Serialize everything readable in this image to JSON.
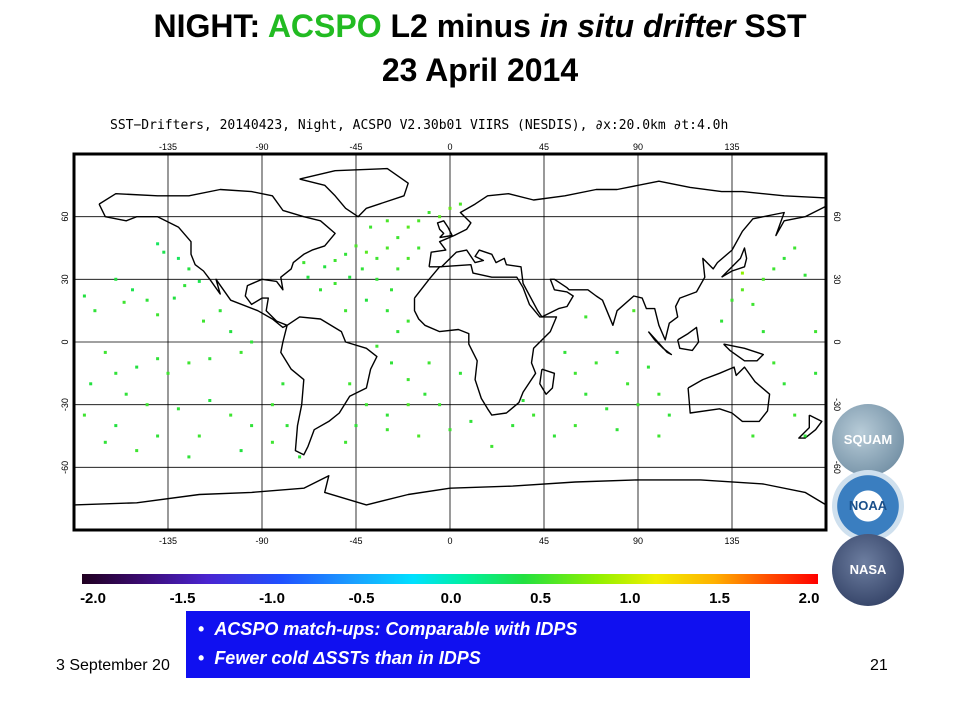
{
  "title_line1_prefix": "NIGHT: ",
  "title_line1_green": "ACSPO",
  "title_line1_mid": " L2 minus ",
  "title_line1_italic": "in situ drifter",
  "title_line1_end": " SST",
  "title_line2": "23 April 2014",
  "map_subtitle": "SST−Drifters, 20140423, Night, ACSPO V2.30b01 VIIRS (NESDIS), ∂x:20.0km ∂t:4.0h",
  "map": {
    "lon_ticks": [
      "-135",
      "-90",
      "-45",
      "0",
      "45",
      "90",
      "135"
    ],
    "lat_ticks_left": [
      "60",
      "30",
      "0",
      "-30",
      "-60"
    ],
    "lat_ticks_right": [
      "60",
      "30",
      "0",
      "-30",
      "-60"
    ],
    "colors": {
      "land_outline": "#000000",
      "grid": "#000000",
      "frame": "#000000",
      "ocean": "#ffffff"
    },
    "drifters": [
      [
        -140,
        47,
        0.3
      ],
      [
        -137,
        43,
        0.35
      ],
      [
        -130,
        40,
        0.3
      ],
      [
        -125,
        35,
        0.4
      ],
      [
        -120,
        29,
        0.35
      ],
      [
        -127,
        27,
        0.45
      ],
      [
        -132,
        21,
        0.4
      ],
      [
        -140,
        13,
        0.5
      ],
      [
        -145,
        20,
        0.45
      ],
      [
        -152,
        25,
        0.35
      ],
      [
        -160,
        30,
        0.4
      ],
      [
        -156,
        19,
        0.5
      ],
      [
        -170,
        15,
        0.45
      ],
      [
        -175,
        22,
        0.4
      ],
      [
        -118,
        10,
        0.5
      ],
      [
        -110,
        15,
        0.45
      ],
      [
        -105,
        5,
        0.4
      ],
      [
        -95,
        0,
        0.45
      ],
      [
        -100,
        -5,
        0.5
      ],
      [
        -115,
        -8,
        0.45
      ],
      [
        -125,
        -10,
        0.5
      ],
      [
        -135,
        -15,
        0.5
      ],
      [
        -140,
        -8,
        0.45
      ],
      [
        -150,
        -12,
        0.4
      ],
      [
        -160,
        -15,
        0.45
      ],
      [
        -165,
        -5,
        0.5
      ],
      [
        -172,
        -20,
        0.4
      ],
      [
        -155,
        -25,
        0.45
      ],
      [
        -145,
        -30,
        0.5
      ],
      [
        -130,
        -32,
        0.45
      ],
      [
        -115,
        -28,
        0.4
      ],
      [
        -105,
        -35,
        0.5
      ],
      [
        -95,
        -40,
        0.45
      ],
      [
        -120,
        -45,
        0.5
      ],
      [
        -140,
        -45,
        0.45
      ],
      [
        -160,
        -40,
        0.4
      ],
      [
        -175,
        -35,
        0.5
      ],
      [
        -165,
        -48,
        0.45
      ],
      [
        -150,
        -52,
        0.5
      ],
      [
        -125,
        -55,
        0.45
      ],
      [
        -100,
        -52,
        0.4
      ],
      [
        -85,
        -48,
        0.5
      ],
      [
        -60,
        36,
        0.4
      ],
      [
        -55,
        39,
        0.5
      ],
      [
        -50,
        42,
        0.45
      ],
      [
        -45,
        46,
        0.55
      ],
      [
        -40,
        43,
        0.6
      ],
      [
        -35,
        40,
        0.5
      ],
      [
        -30,
        45,
        0.55
      ],
      [
        -25,
        50,
        0.5
      ],
      [
        -20,
        55,
        0.6
      ],
      [
        -15,
        58,
        0.55
      ],
      [
        -10,
        62,
        0.5
      ],
      [
        -5,
        60,
        0.6
      ],
      [
        0,
        64,
        0.65
      ],
      [
        5,
        66,
        0.55
      ],
      [
        -38,
        55,
        0.5
      ],
      [
        -30,
        58,
        0.55
      ],
      [
        -42,
        35,
        0.45
      ],
      [
        -48,
        31,
        0.4
      ],
      [
        -55,
        28,
        0.5
      ],
      [
        -62,
        25,
        0.45
      ],
      [
        -68,
        31,
        0.4
      ],
      [
        -70,
        38,
        0.5
      ],
      [
        -35,
        30,
        0.45
      ],
      [
        -25,
        35,
        0.5
      ],
      [
        -20,
        40,
        0.55
      ],
      [
        -15,
        45,
        0.5
      ],
      [
        -28,
        25,
        0.45
      ],
      [
        -40,
        20,
        0.4
      ],
      [
        -50,
        15,
        0.5
      ],
      [
        -30,
        15,
        0.45
      ],
      [
        -20,
        10,
        0.5
      ],
      [
        -25,
        5,
        0.45
      ],
      [
        -35,
        -2,
        0.5
      ],
      [
        -28,
        -10,
        0.45
      ],
      [
        -20,
        -18,
        0.5
      ],
      [
        -12,
        -25,
        0.45
      ],
      [
        -5,
        -30,
        0.5
      ],
      [
        -20,
        -30,
        0.55
      ],
      [
        -30,
        -35,
        0.45
      ],
      [
        -40,
        -30,
        0.5
      ],
      [
        -45,
        -40,
        0.45
      ],
      [
        -30,
        -42,
        0.5
      ],
      [
        -15,
        -45,
        0.55
      ],
      [
        0,
        -42,
        0.5
      ],
      [
        10,
        -38,
        0.45
      ],
      [
        -50,
        -48,
        0.5
      ],
      [
        55,
        -5,
        0.45
      ],
      [
        60,
        -15,
        0.5
      ],
      [
        65,
        -25,
        0.45
      ],
      [
        70,
        -10,
        0.5
      ],
      [
        80,
        -5,
        0.45
      ],
      [
        85,
        -20,
        0.5
      ],
      [
        75,
        -32,
        0.45
      ],
      [
        90,
        -30,
        0.5
      ],
      [
        95,
        -12,
        0.45
      ],
      [
        100,
        -25,
        0.5
      ],
      [
        105,
        -35,
        0.45
      ],
      [
        60,
        -40,
        0.5
      ],
      [
        80,
        -42,
        0.45
      ],
      [
        100,
        -45,
        0.5
      ],
      [
        50,
        -45,
        0.45
      ],
      [
        65,
        12,
        0.5
      ],
      [
        88,
        15,
        0.55
      ],
      [
        130,
        10,
        0.45
      ],
      [
        135,
        20,
        0.5
      ],
      [
        140,
        25,
        0.6
      ],
      [
        145,
        18,
        0.5
      ],
      [
        150,
        30,
        0.55
      ],
      [
        155,
        35,
        0.5
      ],
      [
        160,
        40,
        0.45
      ],
      [
        165,
        45,
        0.5
      ],
      [
        170,
        32,
        0.45
      ],
      [
        140,
        33,
        0.8
      ],
      [
        150,
        5,
        0.45
      ],
      [
        155,
        -10,
        0.5
      ],
      [
        160,
        -20,
        0.45
      ],
      [
        165,
        -35,
        0.5
      ],
      [
        170,
        -45,
        0.45
      ],
      [
        145,
        -45,
        0.5
      ],
      [
        175,
        -15,
        0.45
      ],
      [
        175,
        5,
        0.5
      ],
      [
        -80,
        -20,
        0.45
      ],
      [
        -85,
        -30,
        0.5
      ],
      [
        -78,
        -40,
        0.45
      ],
      [
        -10,
        -10,
        0.5
      ],
      [
        5,
        -15,
        0.45
      ],
      [
        -48,
        -20,
        0.5
      ],
      [
        30,
        -40,
        0.45
      ],
      [
        40,
        -35,
        0.5
      ],
      [
        -72,
        -55,
        0.45
      ],
      [
        20,
        -50,
        0.5
      ],
      [
        35,
        -28,
        0.45
      ]
    ]
  },
  "colorbar": {
    "min": -2.0,
    "max": 2.0,
    "labels": [
      "-2.0",
      "-1.5",
      "-1.0",
      "-0.5",
      "0.0",
      "0.5",
      "1.0",
      "1.5",
      "2.0"
    ]
  },
  "callout": {
    "bullets": [
      "ACSPO match-ups: Comparable with IDPS",
      "Fewer cold ΔSSTs than in IDPS"
    ],
    "colors": {
      "background": "#1010f0",
      "text": "#ffffff"
    }
  },
  "footer": {
    "date": "3 September 20",
    "page": "21"
  },
  "logos": [
    "SQUAM",
    "NOAA",
    "NASA"
  ]
}
